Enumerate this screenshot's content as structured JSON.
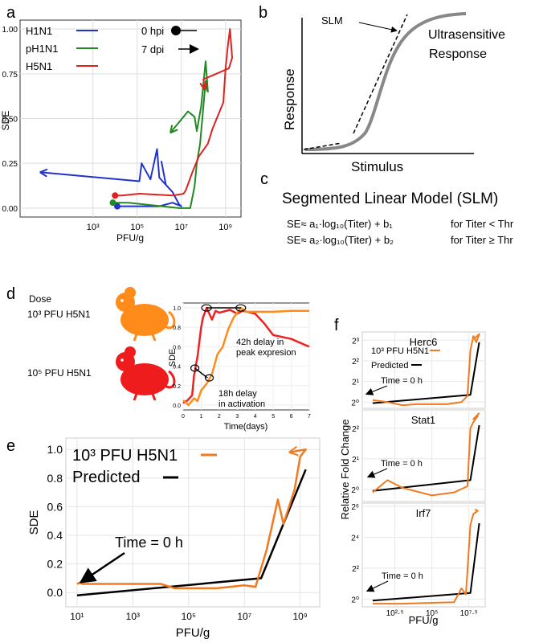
{
  "panels": {
    "a": {
      "letter": "a"
    },
    "b": {
      "letter": "b",
      "curve_label": "Ultrasensitive",
      "curve_label2": "Response",
      "slm_label": "SLM",
      "xlabel": "Stimulus",
      "ylabel": "Response"
    },
    "c": {
      "letter": "c",
      "title": "Segmented Linear Model (SLM)",
      "eq1": "SE≈ a₁·log₁₀(Titer) + b₁",
      "cond1": "for Titer < Thr",
      "eq2": "SE≈ a₂·log₁₀(Titer) + b₂",
      "cond2": "for Titer ≥ Thr"
    },
    "d": {
      "letter": "d",
      "dose_label": "Dose",
      "mouse1_label": "10³ PFU H5N1",
      "mouse2_label": "10⁵ PFU H5N1",
      "ann_peak": "42h delay in",
      "ann_peak2": "peak expresion",
      "ann_act": "18h delay",
      "ann_act2": "in activation"
    },
    "e": {
      "letter": "e",
      "annotation": "Time = 0 h"
    },
    "f": {
      "letter": "f",
      "ylabel": "Relative Fold Change",
      "xlabel": "PFU/g",
      "annotation": "Time = 0 h",
      "legend1": "10³ PFU H5N1",
      "legend2": "Predicted"
    }
  },
  "chart_data": [
    {
      "id": "a",
      "type": "line",
      "title": "",
      "xlabel": "PFU/g",
      "ylabel": "SDE",
      "xscale": "log10",
      "xlim": [
        -0.3,
        9.7
      ],
      "ylim": [
        -0.05,
        1.05
      ],
      "xticks": [
        "10³",
        "10⁵",
        "10⁷",
        "10⁹"
      ],
      "xtick_pos": [
        3,
        5,
        7,
        9
      ],
      "yticks": [
        "0.00",
        "0.25",
        "0.50",
        "0.75",
        "1.00"
      ],
      "ytick_pos": [
        0,
        0.25,
        0.5,
        0.75,
        1.0
      ],
      "grid": true,
      "legend": "top-left",
      "legend_entries": [
        {
          "name": "H1N1",
          "color": "#2233cc"
        },
        {
          "name": "pH1N1",
          "color": "#228822"
        },
        {
          "name": "H5N1",
          "color": "#dd2222"
        }
      ],
      "marker_legend": [
        {
          "label": "0 hpi",
          "marker": "dot"
        },
        {
          "label": "7 dpi",
          "marker": "arrow"
        }
      ],
      "series": [
        {
          "name": "H1N1",
          "color": "#2233cc",
          "points": [
            [
              4.1,
              0.01
            ],
            [
              5.5,
              0.01
            ],
            [
              6.0,
              0.01
            ],
            [
              6.6,
              0.03
            ],
            [
              7.0,
              0.01
            ],
            [
              6.9,
              0.02
            ],
            [
              6.6,
              0.09
            ],
            [
              6.3,
              0.13
            ],
            [
              6.1,
              0.26
            ],
            [
              6.3,
              0.13
            ],
            [
              6.0,
              0.17
            ],
            [
              5.9,
              0.33
            ],
            [
              5.6,
              0.16
            ],
            [
              5.2,
              0.25
            ],
            [
              5.1,
              0.15
            ],
            [
              0.6,
              0.2
            ]
          ]
        },
        {
          "name": "pH1N1",
          "color": "#228822",
          "points": [
            [
              3.9,
              0.03
            ],
            [
              4.6,
              0.03
            ],
            [
              6.9,
              0.0
            ],
            [
              7.4,
              0.0
            ],
            [
              7.6,
              0.12
            ],
            [
              7.7,
              0.25
            ],
            [
              7.85,
              0.36
            ],
            [
              8.1,
              0.71
            ],
            [
              8.15,
              0.66
            ],
            [
              8.2,
              0.65
            ],
            [
              8.1,
              0.82
            ],
            [
              7.9,
              0.57
            ],
            [
              7.7,
              0.43
            ],
            [
              7.6,
              0.51
            ],
            [
              7.3,
              0.54
            ],
            [
              6.5,
              0.42
            ]
          ]
        },
        {
          "name": "H5N1",
          "color": "#dd2222",
          "points": [
            [
              4.0,
              0.07
            ],
            [
              4.3,
              0.07
            ],
            [
              5.1,
              0.08
            ],
            [
              6.6,
              0.07
            ],
            [
              7.1,
              0.08
            ],
            [
              7.2,
              0.1
            ],
            [
              7.5,
              0.2
            ],
            [
              7.8,
              0.29
            ],
            [
              8.2,
              0.36
            ],
            [
              8.4,
              0.44
            ],
            [
              8.9,
              0.59
            ],
            [
              9.0,
              0.78
            ],
            [
              9.1,
              0.9
            ],
            [
              9.2,
              1.0
            ],
            [
              9.3,
              0.84
            ],
            [
              9.15,
              0.78
            ],
            [
              8.2,
              0.73
            ],
            [
              8.0,
              0.72
            ],
            [
              8.05,
              0.66
            ]
          ]
        }
      ]
    },
    {
      "id": "d",
      "type": "line",
      "xlabel": "Time(days)",
      "ylabel": "SDE",
      "xlim": [
        0,
        7
      ],
      "ylim": [
        -0.05,
        1.05
      ],
      "xticks": [
        "0",
        "1",
        "2",
        "3",
        "4",
        "5",
        "6",
        "7"
      ],
      "yticks": [
        "0.0",
        "0.2",
        "0.4",
        "0.6",
        "0.8",
        "1.0"
      ],
      "series": [
        {
          "name": "10⁵ PFU H5N1",
          "color": "#ee2222",
          "points": [
            [
              0,
              0.02
            ],
            [
              0.25,
              0.05
            ],
            [
              0.5,
              0.1
            ],
            [
              0.6,
              0.3
            ],
            [
              0.8,
              0.5
            ],
            [
              1.0,
              0.8
            ],
            [
              1.1,
              0.9
            ],
            [
              1.3,
              1.0
            ],
            [
              1.6,
              0.88
            ],
            [
              1.8,
              0.97
            ],
            [
              2.0,
              0.95
            ],
            [
              2.6,
              0.98
            ],
            [
              3.0,
              0.94
            ],
            [
              3.3,
              0.97
            ],
            [
              4,
              0.94
            ],
            [
              4.5,
              0.84
            ],
            [
              5,
              0.72
            ],
            [
              6,
              0.68
            ],
            [
              7,
              0.6
            ]
          ]
        },
        {
          "name": "10³ PFU H5N1",
          "color": "#ff8c1a",
          "points": [
            [
              0,
              0.05
            ],
            [
              0.3,
              0.0
            ],
            [
              0.6,
              0.07
            ],
            [
              0.8,
              0.04
            ],
            [
              1.0,
              0.15
            ],
            [
              1.3,
              0.22
            ],
            [
              1.6,
              0.32
            ],
            [
              1.9,
              0.52
            ],
            [
              2.2,
              0.6
            ],
            [
              2.5,
              0.78
            ],
            [
              2.8,
              0.9
            ],
            [
              3.0,
              0.95
            ],
            [
              3.2,
              1.0
            ],
            [
              3.5,
              0.96
            ],
            [
              4,
              0.96
            ],
            [
              5,
              0.96
            ],
            [
              6,
              0.97
            ],
            [
              7,
              0.97
            ]
          ]
        }
      ]
    },
    {
      "id": "e",
      "type": "line",
      "xlabel": "PFU/g",
      "ylabel": "SDE",
      "xscale": "log10",
      "xlim": [
        0.6,
        9.7
      ],
      "ylim": [
        -0.1,
        1.08
      ],
      "xticks": [
        "10¹",
        "10³",
        "10⁵",
        "10⁷",
        "10⁹"
      ],
      "xtick_pos": [
        1,
        3,
        5,
        7,
        9
      ],
      "yticks": [
        "0.0",
        "0.2",
        "0.4",
        "0.6",
        "0.8",
        "1.0"
      ],
      "ytick_pos": [
        0,
        0.2,
        0.4,
        0.6,
        0.8,
        1.0
      ],
      "grid": true,
      "legend": "top-left",
      "series": [
        {
          "name": "10³ PFU H5N1",
          "color": "#f07a20",
          "points": [
            [
              1.0,
              0.06
            ],
            [
              1.1,
              0.07
            ],
            [
              1.2,
              0.06
            ],
            [
              3.2,
              0.06
            ],
            [
              4.0,
              0.06
            ],
            [
              4.5,
              0.03
            ],
            [
              6.0,
              0.03
            ],
            [
              7.0,
              0.05
            ],
            [
              7.4,
              0.04
            ],
            [
              7.8,
              0.3
            ],
            [
              8.2,
              0.65
            ],
            [
              8.4,
              0.48
            ],
            [
              8.8,
              0.72
            ],
            [
              9.0,
              0.95
            ],
            [
              9.2,
              1.0
            ],
            [
              8.6,
              0.98
            ]
          ]
        },
        {
          "name": "Predicted",
          "color": "#000000",
          "points": [
            [
              1.0,
              -0.02
            ],
            [
              7.6,
              0.1
            ],
            [
              9.2,
              0.86
            ]
          ]
        }
      ]
    },
    {
      "id": "f",
      "type": "line",
      "xscale": "log10",
      "yscale": "log2",
      "xticks": [
        "10²·⁵",
        "10⁵",
        "10⁷·⁵"
      ],
      "xtick_pos": [
        2.5,
        5,
        7.5
      ],
      "panels": [
        {
          "title": "Herc6",
          "yticks": [
            "2⁰",
            "2¹",
            "2²",
            "2³"
          ],
          "ytick_pos": [
            0,
            1,
            2,
            3
          ],
          "ylim": [
            -0.3,
            3.4
          ],
          "series": [
            {
              "name": "10³ PFU H5N1",
              "color": "#f07a20",
              "points": [
                [
                  1,
                  0.1
                ],
                [
                  2,
                  0.0
                ],
                [
                  3,
                  -0.15
                ],
                [
                  4,
                  -0.1
                ],
                [
                  6,
                  -0.1
                ],
                [
                  7,
                  0.0
                ],
                [
                  7.4,
                  0.3
                ],
                [
                  7.6,
                  2.5
                ],
                [
                  7.8,
                  3.2
                ],
                [
                  8.0,
                  2.9
                ],
                [
                  8.2,
                  3.3
                ],
                [
                  7.9,
                  3.1
                ]
              ]
            },
            {
              "name": "Predicted",
              "color": "#000000",
              "points": [
                [
                  1,
                  -0.05
                ],
                [
                  7.6,
                  0.35
                ],
                [
                  8.2,
                  2.9
                ]
              ]
            }
          ]
        },
        {
          "title": "Stat1",
          "yticks": [
            "2⁰",
            "2¹",
            "2²"
          ],
          "ytick_pos": [
            0,
            1,
            2
          ],
          "ylim": [
            -0.4,
            2.6
          ],
          "series": [
            {
              "name": "10³ PFU H5N1",
              "color": "#f07a20",
              "points": [
                [
                  1,
                  -0.1
                ],
                [
                  2,
                  0.3
                ],
                [
                  3,
                  0.05
                ],
                [
                  5,
                  -0.2
                ],
                [
                  6.5,
                  -0.1
                ],
                [
                  7.4,
                  0.1
                ],
                [
                  7.6,
                  2.0
                ],
                [
                  7.8,
                  2.2
                ],
                [
                  8.1,
                  2.4
                ],
                [
                  7.8,
                  2.3
                ],
                [
                  8.2,
                  2.5
                ]
              ]
            },
            {
              "name": "Predicted",
              "color": "#000000",
              "points": [
                [
                  1,
                  -0.05
                ],
                [
                  7.6,
                  0.3
                ],
                [
                  8.2,
                  2.1
                ]
              ]
            }
          ]
        },
        {
          "title": "Irf7",
          "yticks": [
            "2⁰",
            "2²",
            "2⁴",
            "2⁶"
          ],
          "ytick_pos": [
            0,
            2,
            4,
            6
          ],
          "ylim": [
            -0.5,
            6.2
          ],
          "series": [
            {
              "name": "10³ PFU H5N1",
              "color": "#f07a20",
              "points": [
                [
                  1,
                  -0.3
                ],
                [
                  3,
                  -0.3
                ],
                [
                  6.5,
                  -0.2
                ],
                [
                  7.0,
                  0.7
                ],
                [
                  7.3,
                  0.3
                ],
                [
                  7.6,
                  4.8
                ],
                [
                  7.8,
                  5.5
                ],
                [
                  8.1,
                  5.7
                ],
                [
                  7.9,
                  5.8
                ]
              ]
            },
            {
              "name": "Predicted",
              "color": "#000000",
              "points": [
                [
                  1,
                  -0.1
                ],
                [
                  7.6,
                  0.4
                ],
                [
                  8.2,
                  4.9
                ]
              ]
            }
          ]
        }
      ]
    }
  ]
}
